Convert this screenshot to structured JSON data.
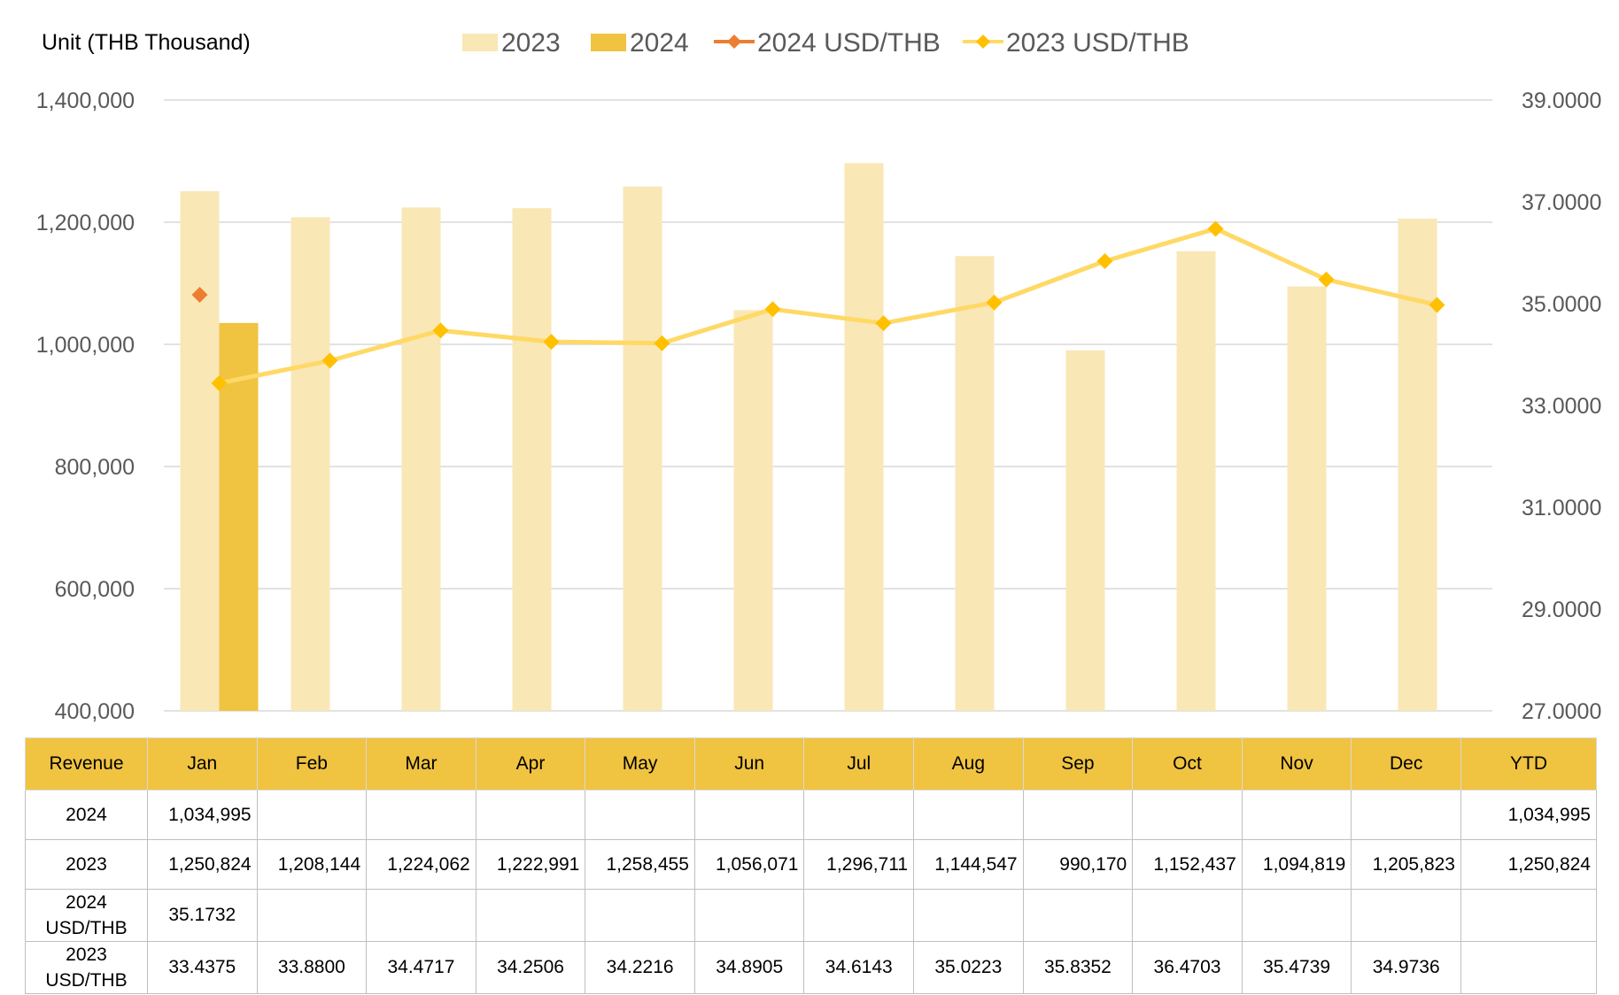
{
  "chart_data": {
    "type": "bar",
    "unit_label": "Unit (THB  Thousand)",
    "categories": [
      "Jan",
      "Feb",
      "Mar",
      "Apr",
      "May",
      "Jun",
      "Jul",
      "Aug",
      "Sep",
      "Oct",
      "Nov",
      "Dec"
    ],
    "series": [
      {
        "name": "2023",
        "kind": "bar",
        "axis": "left",
        "color": "#f9e7b6",
        "values": [
          1250824,
          1208144,
          1224062,
          1222991,
          1258455,
          1056071,
          1296711,
          1144547,
          990170,
          1152437,
          1094819,
          1205823
        ]
      },
      {
        "name": "2024",
        "kind": "bar",
        "axis": "left",
        "color": "#f0c341",
        "values": [
          1034995,
          null,
          null,
          null,
          null,
          null,
          null,
          null,
          null,
          null,
          null,
          null
        ]
      },
      {
        "name": "2024 USD/THB",
        "kind": "line",
        "axis": "right",
        "color": "#ed7d31",
        "values": [
          35.1732,
          null,
          null,
          null,
          null,
          null,
          null,
          null,
          null,
          null,
          null,
          null
        ]
      },
      {
        "name": "2023 USD/THB",
        "kind": "line",
        "axis": "right",
        "color": "#ffd966",
        "marker_color": "#ffc000",
        "values": [
          33.4375,
          33.88,
          34.4717,
          34.2506,
          34.2216,
          34.8905,
          34.6143,
          35.0223,
          35.8352,
          36.4703,
          35.4739,
          34.9736
        ]
      }
    ],
    "y_left": {
      "min": 400000,
      "max": 1400000,
      "ticks": [
        "1,400,000",
        "1,200,000",
        "1,000,000",
        "800,000",
        "600,000",
        "400,000"
      ]
    },
    "y_right": {
      "min": 27,
      "max": 39,
      "ticks": [
        "39.0000",
        "37.0000",
        "35.0000",
        "33.0000",
        "31.0000",
        "29.0000",
        "27.0000"
      ]
    },
    "grid": true,
    "legend_position": "top-center"
  },
  "table": {
    "header": [
      "Revenue",
      "Jan",
      "Feb",
      "Mar",
      "Apr",
      "May",
      "Jun",
      "Jul",
      "Aug",
      "Sep",
      "Oct",
      "Nov",
      "Dec",
      "YTD"
    ],
    "rows": [
      {
        "label": "2024",
        "cells": [
          "1,034,995",
          "",
          "",
          "",
          "",
          "",
          "",
          "",
          "",
          "",
          "",
          "",
          "1,034,995"
        ]
      },
      {
        "label": "2023",
        "cells": [
          "1,250,824",
          "1,208,144",
          "1,224,062",
          "1,222,991",
          "1,258,455",
          "1,056,071",
          "1,296,711",
          "1,144,547",
          "990,170",
          "1,152,437",
          "1,094,819",
          "1,205,823",
          "1,250,824"
        ]
      },
      {
        "label": "2024 USD/THB",
        "cells": [
          "35.1732",
          "",
          "",
          "",
          "",
          "",
          "",
          "",
          "",
          "",
          "",
          "",
          ""
        ]
      },
      {
        "label": "2023 USD/THB",
        "cells": [
          "33.4375",
          "33.8800",
          "34.4717",
          "34.2506",
          "34.2216",
          "34.8905",
          "34.6143",
          "35.0223",
          "35.8352",
          "36.4703",
          "35.4739",
          "34.9736",
          ""
        ]
      }
    ]
  }
}
